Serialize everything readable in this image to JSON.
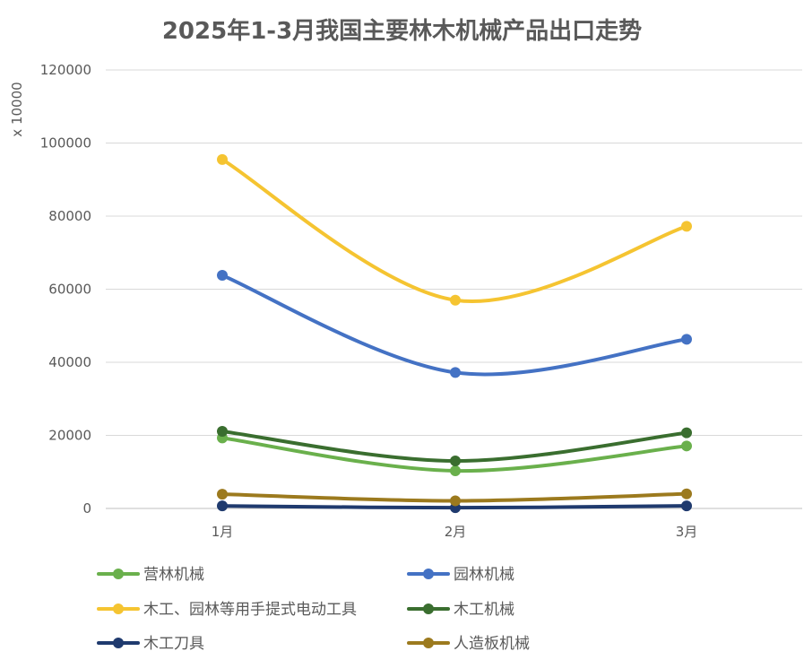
{
  "chart_data": {
    "type": "line",
    "title": "2025年1-3月我国主要林木机械产品出口走势",
    "ylabel": "x 10000",
    "xlabel": "",
    "categories": [
      "1月",
      "2月",
      "3月"
    ],
    "ylim": [
      0,
      120000
    ],
    "yticks": [
      0,
      20000,
      40000,
      60000,
      80000,
      100000,
      120000
    ],
    "grid": true,
    "smooth": true,
    "legend_position": "bottom",
    "series": [
      {
        "name": "营林机械",
        "color": "#6ab04c",
        "values": [
          19300,
          10300,
          17100
        ]
      },
      {
        "name": "园林机械",
        "color": "#4472c4",
        "values": [
          63800,
          37200,
          46300
        ]
      },
      {
        "name": "木工、园林等用手提式电动工具",
        "color": "#f5c431",
        "values": [
          95500,
          57000,
          77200
        ]
      },
      {
        "name": "木工机械",
        "color": "#3a6e2f",
        "values": [
          21100,
          13000,
          20700
        ]
      },
      {
        "name": "木工刀具",
        "color": "#1f3a6e",
        "values": [
          700,
          200,
          700
        ]
      },
      {
        "name": "人造板机械",
        "color": "#9c7a1e",
        "values": [
          3900,
          2100,
          4000
        ]
      }
    ]
  }
}
